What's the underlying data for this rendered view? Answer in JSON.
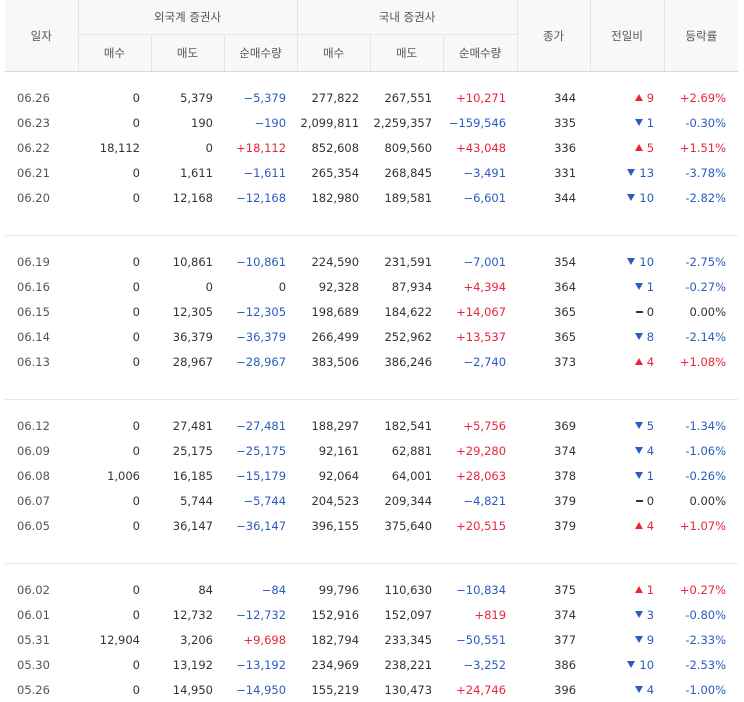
{
  "header": {
    "date": "일자",
    "foreign_group": "외국계 증권사",
    "domestic_group": "국내 증권사",
    "close": "종가",
    "change": "전일비",
    "rate": "등락률",
    "buy": "매수",
    "sell": "매도",
    "net": "순매수량"
  },
  "colors": {
    "up": "#e8263b",
    "down": "#2a5bc1",
    "flat": "#333333"
  },
  "groups": [
    {
      "rows": [
        {
          "date": "06.26",
          "f_buy": "0",
          "f_sell": "5,379",
          "f_net": "−5,379",
          "f_dir": "down",
          "d_buy": "277,822",
          "d_sell": "267,551",
          "d_net": "+10,271",
          "d_dir": "up",
          "close": "344",
          "chg": "9",
          "chg_dir": "up",
          "rate": "+2.69%"
        },
        {
          "date": "06.23",
          "f_buy": "0",
          "f_sell": "190",
          "f_net": "−190",
          "f_dir": "down",
          "d_buy": "2,099,811",
          "d_sell": "2,259,357",
          "d_net": "−159,546",
          "d_dir": "down",
          "close": "335",
          "chg": "1",
          "chg_dir": "down",
          "rate": "-0.30%"
        },
        {
          "date": "06.22",
          "f_buy": "18,112",
          "f_sell": "0",
          "f_net": "+18,112",
          "f_dir": "up",
          "d_buy": "852,608",
          "d_sell": "809,560",
          "d_net": "+43,048",
          "d_dir": "up",
          "close": "336",
          "chg": "5",
          "chg_dir": "up",
          "rate": "+1.51%"
        },
        {
          "date": "06.21",
          "f_buy": "0",
          "f_sell": "1,611",
          "f_net": "−1,611",
          "f_dir": "down",
          "d_buy": "265,354",
          "d_sell": "268,845",
          "d_net": "−3,491",
          "d_dir": "down",
          "close": "331",
          "chg": "13",
          "chg_dir": "down",
          "rate": "-3.78%"
        },
        {
          "date": "06.20",
          "f_buy": "0",
          "f_sell": "12,168",
          "f_net": "−12,168",
          "f_dir": "down",
          "d_buy": "182,980",
          "d_sell": "189,581",
          "d_net": "−6,601",
          "d_dir": "down",
          "close": "344",
          "chg": "10",
          "chg_dir": "down",
          "rate": "-2.82%"
        }
      ]
    },
    {
      "rows": [
        {
          "date": "06.19",
          "f_buy": "0",
          "f_sell": "10,861",
          "f_net": "−10,861",
          "f_dir": "down",
          "d_buy": "224,590",
          "d_sell": "231,591",
          "d_net": "−7,001",
          "d_dir": "down",
          "close": "354",
          "chg": "10",
          "chg_dir": "down",
          "rate": "-2.75%"
        },
        {
          "date": "06.16",
          "f_buy": "0",
          "f_sell": "0",
          "f_net": "0",
          "f_dir": "flat",
          "d_buy": "92,328",
          "d_sell": "87,934",
          "d_net": "+4,394",
          "d_dir": "up",
          "close": "364",
          "chg": "1",
          "chg_dir": "down",
          "rate": "-0.27%"
        },
        {
          "date": "06.15",
          "f_buy": "0",
          "f_sell": "12,305",
          "f_net": "−12,305",
          "f_dir": "down",
          "d_buy": "198,689",
          "d_sell": "184,622",
          "d_net": "+14,067",
          "d_dir": "up",
          "close": "365",
          "chg": "0",
          "chg_dir": "flat",
          "rate": "0.00%"
        },
        {
          "date": "06.14",
          "f_buy": "0",
          "f_sell": "36,379",
          "f_net": "−36,379",
          "f_dir": "down",
          "d_buy": "266,499",
          "d_sell": "252,962",
          "d_net": "+13,537",
          "d_dir": "up",
          "close": "365",
          "chg": "8",
          "chg_dir": "down",
          "rate": "-2.14%"
        },
        {
          "date": "06.13",
          "f_buy": "0",
          "f_sell": "28,967",
          "f_net": "−28,967",
          "f_dir": "down",
          "d_buy": "383,506",
          "d_sell": "386,246",
          "d_net": "−2,740",
          "d_dir": "down",
          "close": "373",
          "chg": "4",
          "chg_dir": "up",
          "rate": "+1.08%"
        }
      ]
    },
    {
      "rows": [
        {
          "date": "06.12",
          "f_buy": "0",
          "f_sell": "27,481",
          "f_net": "−27,481",
          "f_dir": "down",
          "d_buy": "188,297",
          "d_sell": "182,541",
          "d_net": "+5,756",
          "d_dir": "up",
          "close": "369",
          "chg": "5",
          "chg_dir": "down",
          "rate": "-1.34%"
        },
        {
          "date": "06.09",
          "f_buy": "0",
          "f_sell": "25,175",
          "f_net": "−25,175",
          "f_dir": "down",
          "d_buy": "92,161",
          "d_sell": "62,881",
          "d_net": "+29,280",
          "d_dir": "up",
          "close": "374",
          "chg": "4",
          "chg_dir": "down",
          "rate": "-1.06%"
        },
        {
          "date": "06.08",
          "f_buy": "1,006",
          "f_sell": "16,185",
          "f_net": "−15,179",
          "f_dir": "down",
          "d_buy": "92,064",
          "d_sell": "64,001",
          "d_net": "+28,063",
          "d_dir": "up",
          "close": "378",
          "chg": "1",
          "chg_dir": "down",
          "rate": "-0.26%"
        },
        {
          "date": "06.07",
          "f_buy": "0",
          "f_sell": "5,744",
          "f_net": "−5,744",
          "f_dir": "down",
          "d_buy": "204,523",
          "d_sell": "209,344",
          "d_net": "−4,821",
          "d_dir": "down",
          "close": "379",
          "chg": "0",
          "chg_dir": "flat",
          "rate": "0.00%"
        },
        {
          "date": "06.05",
          "f_buy": "0",
          "f_sell": "36,147",
          "f_net": "−36,147",
          "f_dir": "down",
          "d_buy": "396,155",
          "d_sell": "375,640",
          "d_net": "+20,515",
          "d_dir": "up",
          "close": "379",
          "chg": "4",
          "chg_dir": "up",
          "rate": "+1.07%"
        }
      ]
    },
    {
      "rows": [
        {
          "date": "06.02",
          "f_buy": "0",
          "f_sell": "84",
          "f_net": "−84",
          "f_dir": "down",
          "d_buy": "99,796",
          "d_sell": "110,630",
          "d_net": "−10,834",
          "d_dir": "down",
          "close": "375",
          "chg": "1",
          "chg_dir": "up",
          "rate": "+0.27%"
        },
        {
          "date": "06.01",
          "f_buy": "0",
          "f_sell": "12,732",
          "f_net": "−12,732",
          "f_dir": "down",
          "d_buy": "152,916",
          "d_sell": "152,097",
          "d_net": "+819",
          "d_dir": "up",
          "close": "374",
          "chg": "3",
          "chg_dir": "down",
          "rate": "-0.80%"
        },
        {
          "date": "05.31",
          "f_buy": "12,904",
          "f_sell": "3,206",
          "f_net": "+9,698",
          "f_dir": "up",
          "d_buy": "182,794",
          "d_sell": "233,345",
          "d_net": "−50,551",
          "d_dir": "down",
          "close": "377",
          "chg": "9",
          "chg_dir": "down",
          "rate": "-2.33%"
        },
        {
          "date": "05.30",
          "f_buy": "0",
          "f_sell": "13,192",
          "f_net": "−13,192",
          "f_dir": "down",
          "d_buy": "234,969",
          "d_sell": "238,221",
          "d_net": "−3,252",
          "d_dir": "down",
          "close": "386",
          "chg": "10",
          "chg_dir": "down",
          "rate": "-2.53%"
        },
        {
          "date": "05.26",
          "f_buy": "0",
          "f_sell": "14,950",
          "f_net": "−14,950",
          "f_dir": "down",
          "d_buy": "155,219",
          "d_sell": "130,473",
          "d_net": "+24,746",
          "d_dir": "up",
          "close": "396",
          "chg": "4",
          "chg_dir": "down",
          "rate": "-1.00%"
        }
      ]
    }
  ]
}
